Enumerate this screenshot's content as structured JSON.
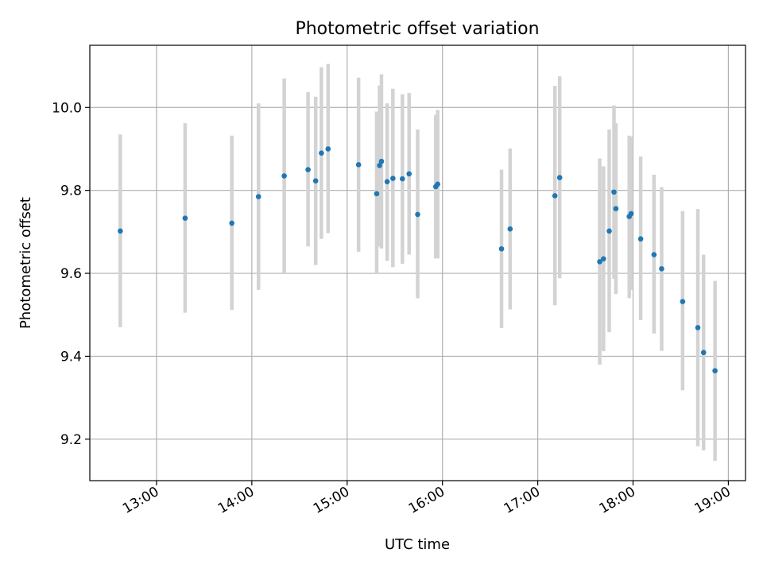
{
  "chart_data": {
    "type": "scatter",
    "title": "Photometric offset variation",
    "xlabel": "UTC time",
    "ylabel": "Photometric offset",
    "x_axis": {
      "unit": "hours UTC",
      "range": [
        12.3,
        19.18
      ],
      "ticks": [
        13,
        14,
        15,
        16,
        17,
        18,
        19
      ],
      "tick_labels": [
        "13:00",
        "14:00",
        "15:00",
        "16:00",
        "17:00",
        "18:00",
        "19:00"
      ]
    },
    "y_axis": {
      "range": [
        9.1,
        10.15
      ],
      "ticks": [
        9.2,
        9.4,
        9.6,
        9.8,
        10.0
      ],
      "tick_labels": [
        "9.2",
        "9.4",
        "9.6",
        "9.8",
        "10.0"
      ]
    },
    "grid": true,
    "legend": "none",
    "colors": {
      "point": "#1f77b4",
      "errorbar": "#d3d3d3"
    },
    "series": [
      {
        "points": [
          {
            "t": 12.62,
            "y": 9.702,
            "lo": 9.47,
            "hi": 9.935
          },
          {
            "t": 13.3,
            "y": 9.733,
            "lo": 9.505,
            "hi": 9.962
          },
          {
            "t": 13.79,
            "y": 9.721,
            "lo": 9.512,
            "hi": 9.932
          },
          {
            "t": 14.07,
            "y": 9.785,
            "lo": 9.56,
            "hi": 10.01
          },
          {
            "t": 14.34,
            "y": 9.835,
            "lo": 9.6,
            "hi": 10.07
          },
          {
            "t": 14.59,
            "y": 9.85,
            "lo": 9.665,
            "hi": 10.037
          },
          {
            "t": 14.67,
            "y": 9.823,
            "lo": 9.62,
            "hi": 10.026
          },
          {
            "t": 14.73,
            "y": 9.89,
            "lo": 9.683,
            "hi": 10.097
          },
          {
            "t": 14.8,
            "y": 9.9,
            "lo": 9.697,
            "hi": 10.105
          },
          {
            "t": 15.12,
            "y": 9.862,
            "lo": 9.652,
            "hi": 10.072
          },
          {
            "t": 15.31,
            "y": 9.792,
            "lo": 9.598,
            "hi": 9.99
          },
          {
            "t": 15.34,
            "y": 9.86,
            "lo": 9.665,
            "hi": 10.053
          },
          {
            "t": 15.36,
            "y": 9.87,
            "lo": 9.66,
            "hi": 10.08
          },
          {
            "t": 15.42,
            "y": 9.821,
            "lo": 9.63,
            "hi": 10.01
          },
          {
            "t": 15.48,
            "y": 9.829,
            "lo": 9.615,
            "hi": 10.045
          },
          {
            "t": 15.58,
            "y": 9.828,
            "lo": 9.623,
            "hi": 10.032
          },
          {
            "t": 15.65,
            "y": 9.84,
            "lo": 9.645,
            "hi": 10.035
          },
          {
            "t": 15.74,
            "y": 9.742,
            "lo": 9.54,
            "hi": 9.947
          },
          {
            "t": 15.93,
            "y": 9.809,
            "lo": 9.636,
            "hi": 9.982
          },
          {
            "t": 15.95,
            "y": 9.815,
            "lo": 9.636,
            "hi": 9.994
          },
          {
            "t": 16.62,
            "y": 9.659,
            "lo": 9.468,
            "hi": 9.85
          },
          {
            "t": 16.71,
            "y": 9.707,
            "lo": 9.513,
            "hi": 9.901
          },
          {
            "t": 17.18,
            "y": 9.787,
            "lo": 9.523,
            "hi": 10.052
          },
          {
            "t": 17.23,
            "y": 9.831,
            "lo": 9.588,
            "hi": 10.075
          },
          {
            "t": 17.65,
            "y": 9.628,
            "lo": 9.38,
            "hi": 9.877
          },
          {
            "t": 17.69,
            "y": 9.635,
            "lo": 9.412,
            "hi": 9.858
          },
          {
            "t": 17.75,
            "y": 9.702,
            "lo": 9.458,
            "hi": 9.947
          },
          {
            "t": 17.8,
            "y": 9.796,
            "lo": 9.587,
            "hi": 10.005
          },
          {
            "t": 17.82,
            "y": 9.756,
            "lo": 9.55,
            "hi": 9.962
          },
          {
            "t": 17.96,
            "y": 9.737,
            "lo": 9.54,
            "hi": 9.932
          },
          {
            "t": 17.98,
            "y": 9.744,
            "lo": 9.56,
            "hi": 9.93
          },
          {
            "t": 18.08,
            "y": 9.683,
            "lo": 9.487,
            "hi": 9.882
          },
          {
            "t": 18.22,
            "y": 9.645,
            "lo": 9.455,
            "hi": 9.838
          },
          {
            "t": 18.3,
            "y": 9.611,
            "lo": 9.413,
            "hi": 9.808
          },
          {
            "t": 18.52,
            "y": 9.532,
            "lo": 9.318,
            "hi": 9.75
          },
          {
            "t": 18.68,
            "y": 9.469,
            "lo": 9.183,
            "hi": 9.755
          },
          {
            "t": 18.74,
            "y": 9.409,
            "lo": 9.173,
            "hi": 9.645
          },
          {
            "t": 18.86,
            "y": 9.365,
            "lo": 9.148,
            "hi": 9.582
          }
        ]
      }
    ]
  }
}
